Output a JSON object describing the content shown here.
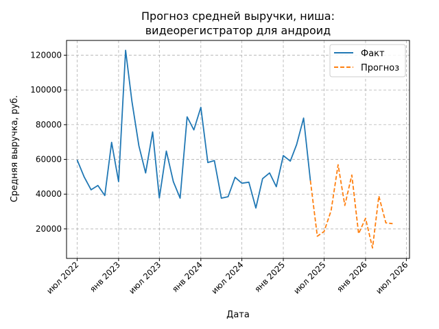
{
  "chart_data": {
    "type": "line",
    "title_lines": [
      "Прогноз средней выручки, ниша:",
      "видеорегистратор для андроид"
    ],
    "xlabel": "Дата",
    "ylabel": "Средняя выручка, руб.",
    "xlim": [
      "2022-05-15",
      "2026-07-15"
    ],
    "ylim": [
      3000,
      128500
    ],
    "x_ticks": [
      {
        "date": "2022-07-01",
        "label": "июл 2022"
      },
      {
        "date": "2023-01-01",
        "label": "янв 2023"
      },
      {
        "date": "2023-07-01",
        "label": "июл 2023"
      },
      {
        "date": "2024-01-01",
        "label": "янв 2024"
      },
      {
        "date": "2024-07-01",
        "label": "июл 2024"
      },
      {
        "date": "2025-01-01",
        "label": "янв 2025"
      },
      {
        "date": "2025-07-01",
        "label": "июл 2025"
      },
      {
        "date": "2026-01-01",
        "label": "янв 2026"
      },
      {
        "date": "2026-07-01",
        "label": "июл 2026"
      }
    ],
    "y_ticks": [
      {
        "value": 20000,
        "label": "20000"
      },
      {
        "value": 40000,
        "label": "40000"
      },
      {
        "value": 60000,
        "label": "60000"
      },
      {
        "value": 80000,
        "label": "80000"
      },
      {
        "value": 100000,
        "label": "100000"
      },
      {
        "value": 120000,
        "label": "120000"
      }
    ],
    "grid": true,
    "legend_position": "top-right",
    "series": [
      {
        "name": "Факт",
        "color": "#1f77b4",
        "style": "solid",
        "points": [
          [
            "2022-07-01",
            59800
          ],
          [
            "2022-08-01",
            50000
          ],
          [
            "2022-09-01",
            42500
          ],
          [
            "2022-10-01",
            45000
          ],
          [
            "2022-11-01",
            39200
          ],
          [
            "2022-12-01",
            69800
          ],
          [
            "2023-01-01",
            47200
          ],
          [
            "2023-02-01",
            122800
          ],
          [
            "2023-03-01",
            93500
          ],
          [
            "2023-04-01",
            67800
          ],
          [
            "2023-05-01",
            52200
          ],
          [
            "2023-06-01",
            75800
          ],
          [
            "2023-07-01",
            37800
          ],
          [
            "2023-08-01",
            64800
          ],
          [
            "2023-09-01",
            47200
          ],
          [
            "2023-10-01",
            37700
          ],
          [
            "2023-11-01",
            84500
          ],
          [
            "2023-12-01",
            77000
          ],
          [
            "2024-01-01",
            90000
          ],
          [
            "2024-02-01",
            58200
          ],
          [
            "2024-03-01",
            59300
          ],
          [
            "2024-04-01",
            37700
          ],
          [
            "2024-05-01",
            38500
          ],
          [
            "2024-06-01",
            49700
          ],
          [
            "2024-07-01",
            46300
          ],
          [
            "2024-08-01",
            46900
          ],
          [
            "2024-09-01",
            32000
          ],
          [
            "2024-10-01",
            48900
          ],
          [
            "2024-11-01",
            52200
          ],
          [
            "2024-12-01",
            44300
          ],
          [
            "2025-01-01",
            62200
          ],
          [
            "2025-02-01",
            59000
          ],
          [
            "2025-03-01",
            68500
          ],
          [
            "2025-04-01",
            83800
          ],
          [
            "2025-05-01",
            47800
          ]
        ]
      },
      {
        "name": "Прогноз",
        "color": "#ff7f0e",
        "style": "dashed",
        "points": [
          [
            "2025-05-01",
            47800
          ],
          [
            "2025-06-01",
            15800
          ],
          [
            "2025-07-01",
            18500
          ],
          [
            "2025-08-01",
            30500
          ],
          [
            "2025-09-01",
            56900
          ],
          [
            "2025-10-01",
            33500
          ],
          [
            "2025-11-01",
            51000
          ],
          [
            "2025-12-01",
            17200
          ],
          [
            "2026-01-01",
            26100
          ],
          [
            "2026-02-01",
            9000
          ],
          [
            "2026-03-01",
            38900
          ],
          [
            "2026-04-01",
            23500
          ],
          [
            "2026-05-01",
            23000
          ]
        ]
      }
    ]
  }
}
